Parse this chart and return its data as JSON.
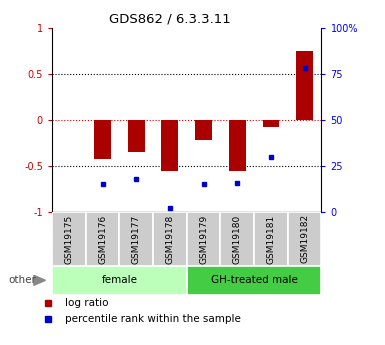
{
  "title": "GDS862 / 6.3.3.11",
  "samples": [
    "GSM19175",
    "GSM19176",
    "GSM19177",
    "GSM19178",
    "GSM19179",
    "GSM19180",
    "GSM19181",
    "GSM19182"
  ],
  "log_ratio": [
    0.0,
    -0.42,
    -0.35,
    -0.55,
    -0.22,
    -0.55,
    -0.08,
    0.75
  ],
  "percentile_rank": [
    null,
    15,
    18,
    2,
    15,
    16,
    30,
    78
  ],
  "groups": [
    {
      "label": "female",
      "start": 0,
      "end": 4,
      "color": "#bbffbb"
    },
    {
      "label": "GH-treated male",
      "start": 4,
      "end": 8,
      "color": "#44cc44"
    }
  ],
  "bar_color": "#aa0000",
  "dot_color": "#0000cc",
  "legend_items": [
    {
      "color": "#aa0000",
      "label": "log ratio"
    },
    {
      "color": "#0000cc",
      "label": "percentile rank within the sample"
    }
  ]
}
